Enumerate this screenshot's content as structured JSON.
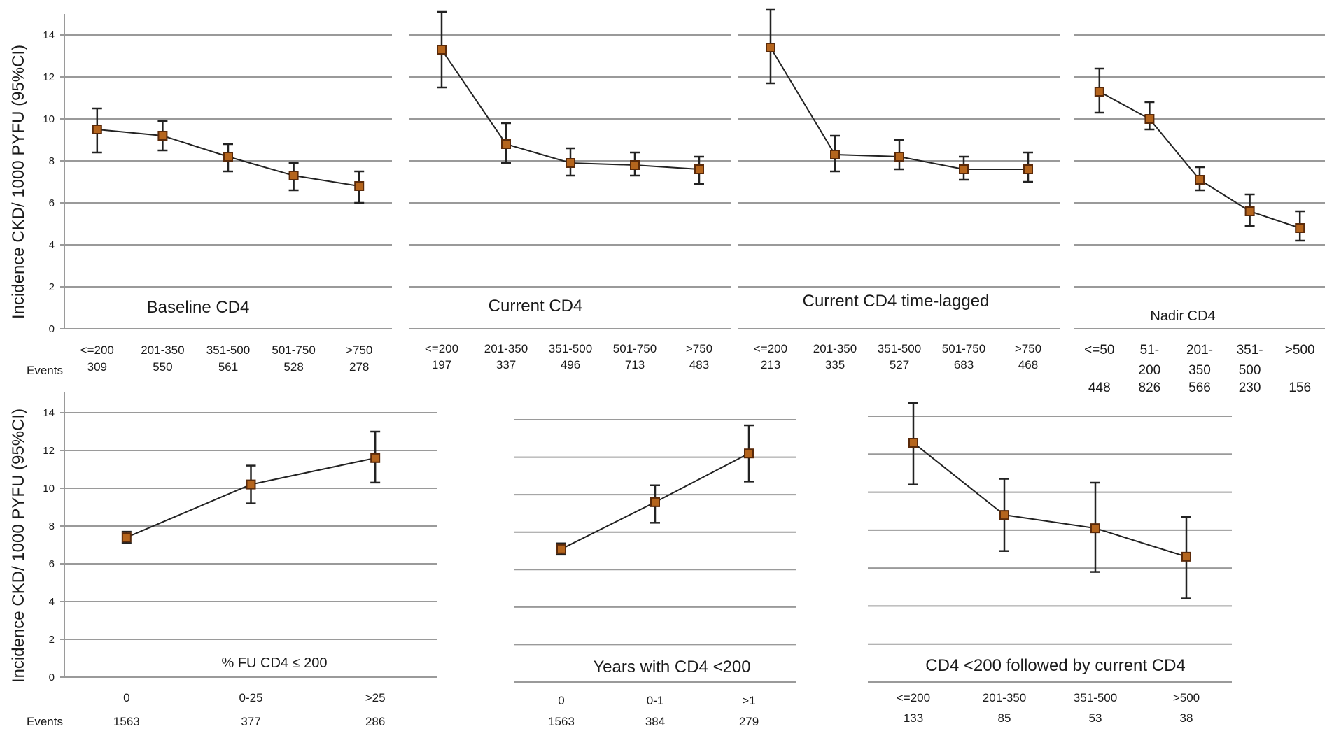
{
  "y_axis_label": "Incidence CKD/ 1000 PYFU (95%CI)",
  "events_label": "Events",
  "colors": {
    "grid": "#9a9a9a",
    "line": "#222222",
    "marker": "#b5651d",
    "marker_edge": "#5a2a0a",
    "text": "#1a1a1a"
  },
  "chart_data": [
    {
      "type": "line",
      "title": "Baseline CD4",
      "ylim": [
        0,
        14
      ],
      "yticks": [
        0,
        2,
        4,
        6,
        8,
        10,
        12,
        14
      ],
      "show_y_ticks": true,
      "categories": [
        "<=200",
        "201-350",
        "351-500",
        "501-750",
        ">750"
      ],
      "events": [
        "309",
        "550",
        "561",
        "528",
        "278"
      ],
      "values": [
        9.5,
        9.2,
        8.2,
        7.3,
        6.8
      ],
      "ci_low": [
        8.4,
        8.5,
        7.5,
        6.6,
        6.0
      ],
      "ci_high": [
        10.5,
        9.9,
        8.8,
        7.9,
        7.5
      ]
    },
    {
      "type": "line",
      "title": "Current CD4",
      "ylim": [
        0,
        14
      ],
      "yticks": [
        0,
        2,
        4,
        6,
        8,
        10,
        12,
        14
      ],
      "show_y_ticks": false,
      "categories": [
        "<=200",
        "201-350",
        "351-500",
        "501-750",
        ">750"
      ],
      "events": [
        "197",
        "337",
        "496",
        "713",
        "483"
      ],
      "values": [
        13.3,
        8.8,
        7.9,
        7.8,
        7.6
      ],
      "ci_low": [
        11.5,
        7.9,
        7.3,
        7.3,
        6.9
      ],
      "ci_high": [
        15.1,
        9.8,
        8.6,
        8.4,
        8.2
      ]
    },
    {
      "type": "line",
      "title": "Current CD4 time-lagged",
      "ylim": [
        0,
        14
      ],
      "yticks": [
        0,
        2,
        4,
        6,
        8,
        10,
        12,
        14
      ],
      "show_y_ticks": false,
      "categories": [
        "<=200",
        "201-350",
        "351-500",
        "501-750",
        ">750"
      ],
      "events": [
        "213",
        "335",
        "527",
        "683",
        "468"
      ],
      "values": [
        13.4,
        8.3,
        8.2,
        7.6,
        7.6
      ],
      "ci_low": [
        11.7,
        7.5,
        7.6,
        7.1,
        7.0
      ],
      "ci_high": [
        15.2,
        9.2,
        9.0,
        8.2,
        8.4
      ]
    },
    {
      "type": "line",
      "title": "Nadir CD4",
      "ylim": [
        0,
        14
      ],
      "yticks": [
        0,
        2,
        4,
        6,
        8,
        10,
        12,
        14
      ],
      "show_y_ticks": false,
      "categories": [
        "<=50",
        "51-200",
        "201-350",
        "351-500",
        ">500"
      ],
      "events": [
        "448",
        "826",
        "566",
        "230",
        "156"
      ],
      "values": [
        11.3,
        10.0,
        7.1,
        5.6,
        4.8
      ],
      "ci_low": [
        10.3,
        9.5,
        6.6,
        4.9,
        4.2
      ],
      "ci_high": [
        12.4,
        10.8,
        7.7,
        6.4,
        5.6
      ]
    },
    {
      "type": "line",
      "title": "% FU CD4 ≤ 200",
      "ylim": [
        0,
        14
      ],
      "yticks": [
        0,
        2,
        4,
        6,
        8,
        10,
        12,
        14
      ],
      "show_y_ticks": true,
      "categories": [
        "0",
        "0-25",
        ">25"
      ],
      "events": [
        "1563",
        "377",
        "286"
      ],
      "values": [
        7.4,
        10.2,
        11.6
      ],
      "ci_low": [
        7.1,
        9.2,
        10.3
      ],
      "ci_high": [
        7.7,
        11.2,
        13.0
      ]
    },
    {
      "type": "line",
      "title": "Years with CD4 <200",
      "ylim": [
        0,
        14
      ],
      "yticks": [
        0,
        2,
        4,
        6,
        8,
        10,
        12,
        14
      ],
      "show_y_ticks": false,
      "categories": [
        "0",
        "0-1",
        ">1"
      ],
      "events": [
        "1563",
        "384",
        "279"
      ],
      "values": [
        7.1,
        9.6,
        12.2
      ],
      "ci_low": [
        6.8,
        8.5,
        10.7
      ],
      "ci_high": [
        7.4,
        10.5,
        13.7
      ]
    },
    {
      "type": "line",
      "title": "CD4 <200 followed by current CD4",
      "ylim": [
        0,
        14
      ],
      "yticks": [
        0,
        2,
        4,
        6,
        8,
        10,
        12,
        14
      ],
      "show_y_ticks": false,
      "categories": [
        "<=200",
        "201-350",
        "351-500",
        ">500"
      ],
      "events": [
        "133",
        "85",
        "53",
        "38"
      ],
      "values": [
        12.6,
        8.8,
        8.1,
        6.6
      ],
      "ci_low": [
        10.4,
        6.9,
        5.8,
        4.4
      ],
      "ci_high": [
        14.7,
        10.7,
        10.5,
        8.7
      ]
    }
  ]
}
